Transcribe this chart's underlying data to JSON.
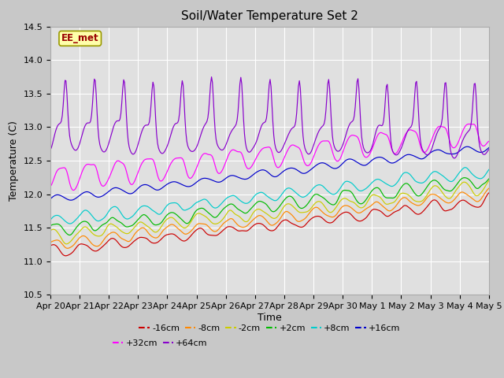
{
  "title": "Soil/Water Temperature Set 2",
  "xlabel": "Time",
  "ylabel": "Temperature (C)",
  "ylim": [
    10.5,
    14.5
  ],
  "annotation": "EE_met",
  "series": [
    {
      "label": "-16cm",
      "color": "#cc0000"
    },
    {
      "label": "-8cm",
      "color": "#ff8800"
    },
    {
      "label": "-2cm",
      "color": "#cccc00"
    },
    {
      "label": "+2cm",
      "color": "#00bb00"
    },
    {
      "label": "+8cm",
      "color": "#00cccc"
    },
    {
      "label": "+16cm",
      "color": "#0000cc"
    },
    {
      "label": "+32cm",
      "color": "#ff00ff"
    },
    {
      "label": "+64cm",
      "color": "#8800cc"
    }
  ],
  "x_tick_labels": [
    "Apr 20",
    "Apr 21",
    "Apr 22",
    "Apr 23",
    "Apr 24",
    "Apr 25",
    "Apr 26",
    "Apr 27",
    "Apr 28",
    "Apr 29",
    "Apr 30",
    "May 1",
    "May 2",
    "May 3",
    "May 4",
    "May 5"
  ],
  "n_points": 480
}
